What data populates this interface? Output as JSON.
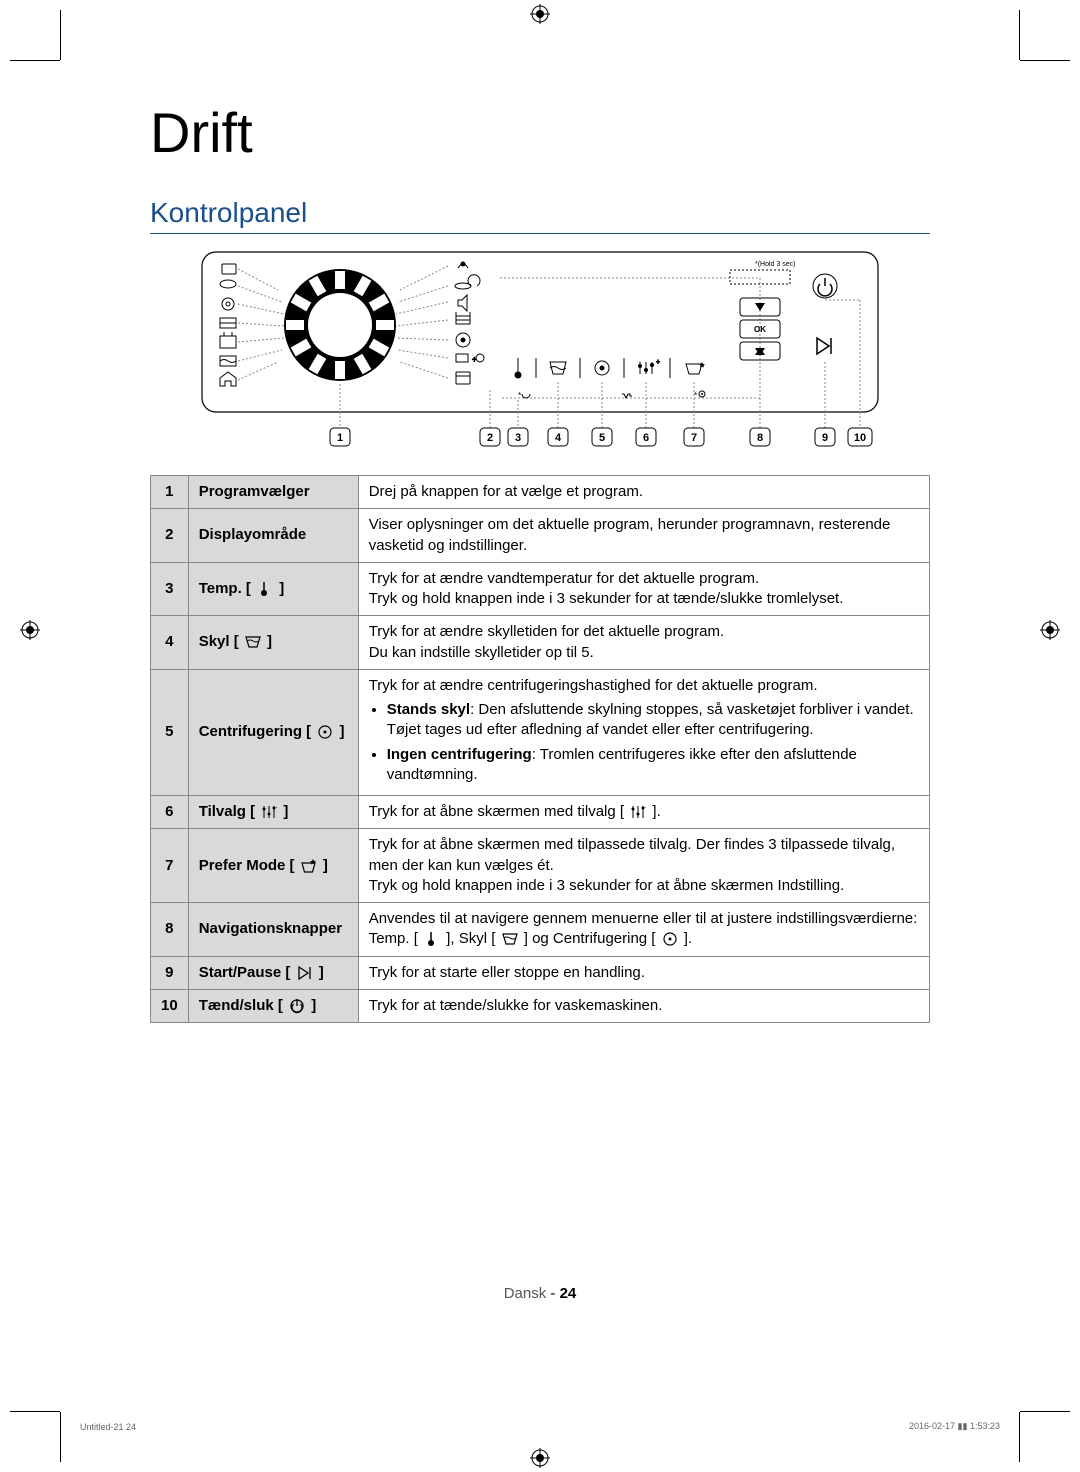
{
  "page": {
    "title": "Drift",
    "subtitle": "Kontrolpanel",
    "language_label": "Dansk",
    "page_number": "24",
    "footer_left": "Untitled-21   24",
    "footer_right": "2016-02-17   ▮▮ 1:53:23"
  },
  "panel": {
    "hold_label": "*(Hold 3 sec)",
    "ok_label": "OK",
    "callouts": [
      "1",
      "2",
      "3",
      "4",
      "5",
      "6",
      "7",
      "8",
      "9",
      "10"
    ],
    "colors": {
      "outline": "#000000",
      "panel_bg": "#ffffff",
      "callout_box": "#ffffff",
      "callout_border": "#000000",
      "dotted": "#888888"
    }
  },
  "table": {
    "rows": [
      {
        "num": "1",
        "label": "Programvælger",
        "icon": null,
        "desc_html": "Drej på knappen for at vælge et program."
      },
      {
        "num": "2",
        "label": "Displayområde",
        "icon": null,
        "desc_html": "Viser oplysninger om det aktuelle program, herunder programnavn, resterende vasketid og indstillinger."
      },
      {
        "num": "3",
        "label": "Temp.",
        "icon": "thermometer",
        "desc_html": "Tryk for at ændre vandtemperatur for det aktuelle program.<br>Tryk og hold knappen inde i 3 sekunder for at tænde/slukke tromlelyset."
      },
      {
        "num": "4",
        "label": "Skyl",
        "icon": "basin-rinse",
        "desc_html": "Tryk for at ændre skylletiden for det aktuelle program.<br>Du kan indstille skylletider op til 5."
      },
      {
        "num": "5",
        "label": "Centrifugering",
        "icon": "spin",
        "desc_html": "Tryk for at ændre centrifugeringshastighed for det aktuelle program.<ul><li><span class=\"boldinline\">Stands skyl</span>: Den afsluttende skylning stoppes, så vasketøjet forbliver i vandet. Tøjet tages ud efter afledning af vandet eller efter centrifugering.</li><li><span class=\"boldinline\">Ingen centrifugering</span>: Tromlen centrifugeres ikke efter den afsluttende vandtømning.</li></ul>"
      },
      {
        "num": "6",
        "label": "Tilvalg",
        "icon": "options",
        "desc_html": "Tryk for at åbne skærmen med tilvalg [ {options} ]."
      },
      {
        "num": "7",
        "label": "Prefer Mode",
        "icon": "prefer",
        "desc_html": "Tryk for at åbne skærmen med tilpassede tilvalg. Der findes 3 tilpassede tilvalg, men der kan kun vælges ét.<br>Tryk og hold knappen inde i 3 sekunder for at åbne skærmen Indstilling."
      },
      {
        "num": "8",
        "label": "Navigationsknapper",
        "icon": null,
        "desc_html": "Anvendes til at navigere gennem menuerne eller til at justere indstillingsværdierne: Temp. [ {thermometer} ], Skyl [ {basin-rinse} ] og Centrifugering [ {spin} ]."
      },
      {
        "num": "9",
        "label": "Start/Pause",
        "icon": "playpause",
        "desc_html": "Tryk for at starte eller stoppe en handling."
      },
      {
        "num": "10",
        "label": "Tænd/sluk",
        "icon": "power",
        "desc_html": "Tryk for at tænde/slukke for vaskemaskinen."
      }
    ]
  },
  "icons": {
    "thermometer": "therm",
    "basin-rinse": "basin",
    "spin": "spin",
    "options": "opts",
    "prefer": "prefer",
    "playpause": "pp",
    "power": "pw"
  }
}
